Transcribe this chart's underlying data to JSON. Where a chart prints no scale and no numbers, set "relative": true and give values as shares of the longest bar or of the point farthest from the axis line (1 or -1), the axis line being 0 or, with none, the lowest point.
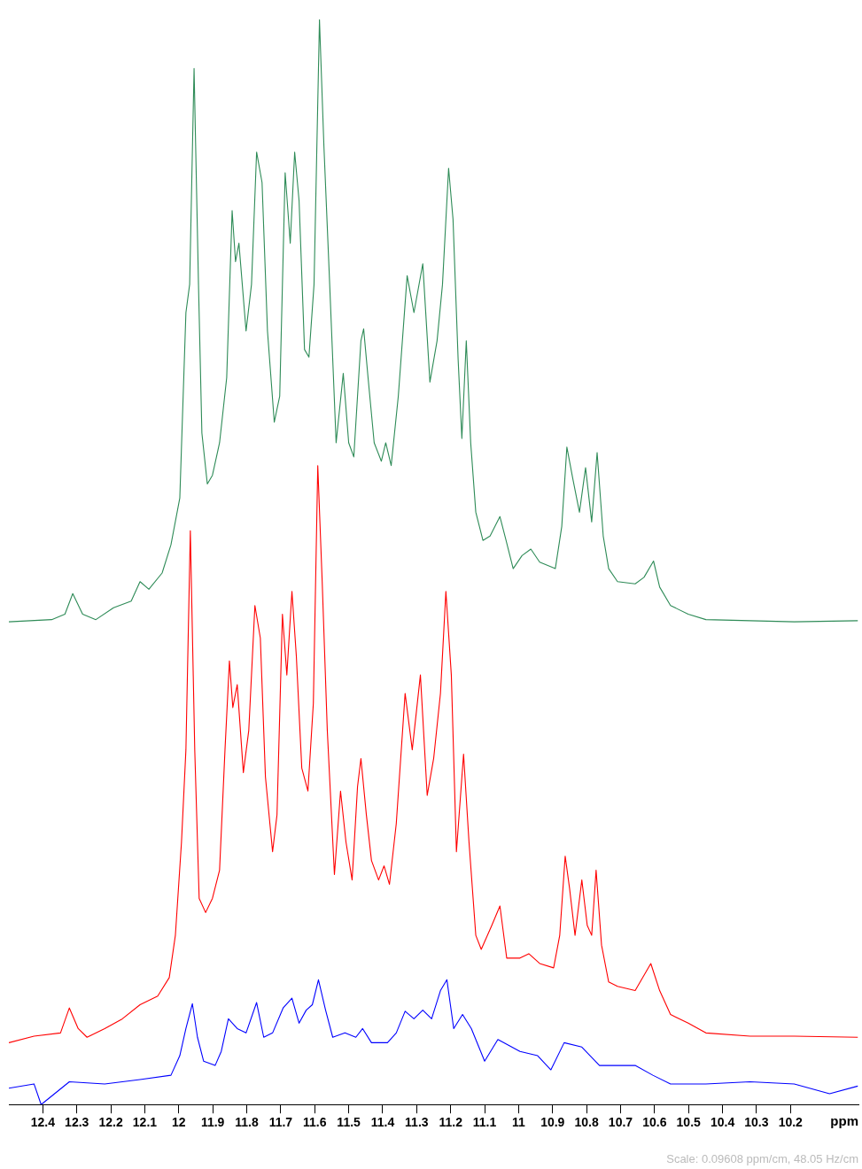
{
  "chart_data": {
    "type": "line",
    "relative": true,
    "xlabel": "ppm",
    "xlim": [
      12.5,
      10.0
    ],
    "xticks": [
      12.4,
      12.3,
      12.2,
      12.1,
      12.0,
      11.9,
      11.8,
      11.7,
      11.6,
      11.5,
      11.4,
      11.3,
      11.2,
      11.1,
      11.0,
      10.9,
      10.8,
      10.7,
      10.6,
      10.5,
      10.4,
      10.3,
      10.2
    ],
    "grid": false,
    "legend": false,
    "marker": "none",
    "line_style": "solid",
    "annotations": [
      "Scale: 0.09608 ppm/cm, 48.05 Hz/cm"
    ],
    "series": [
      {
        "color": "#2e8b57",
        "x": [
          12.5,
          12.374,
          12.335,
          12.312,
          12.283,
          12.244,
          12.192,
          12.14,
          12.114,
          12.088,
          12.049,
          12.023,
          11.997,
          11.979,
          11.968,
          11.955,
          11.942,
          11.932,
          11.916,
          11.901,
          11.88,
          11.859,
          11.843,
          11.833,
          11.823,
          11.802,
          11.786,
          11.771,
          11.755,
          11.739,
          11.719,
          11.703,
          11.687,
          11.672,
          11.659,
          11.646,
          11.63,
          11.617,
          11.602,
          11.586,
          11.573,
          11.557,
          11.537,
          11.516,
          11.5,
          11.485,
          11.464,
          11.456,
          11.443,
          11.425,
          11.404,
          11.391,
          11.375,
          11.354,
          11.328,
          11.308,
          11.282,
          11.261,
          11.24,
          11.224,
          11.206,
          11.193,
          11.178,
          11.167,
          11.154,
          11.141,
          11.126,
          11.105,
          11.084,
          11.055,
          11.037,
          11.016,
          10.99,
          10.964,
          10.938,
          10.892,
          10.873,
          10.858,
          10.84,
          10.821,
          10.803,
          10.785,
          10.769,
          10.751,
          10.735,
          10.709,
          10.657,
          10.631,
          10.603,
          10.585,
          10.553,
          10.501,
          10.449,
          10.319,
          10.189,
          10.002
        ],
        "values": [
          0.445,
          0.447,
          0.452,
          0.471,
          0.452,
          0.447,
          0.458,
          0.464,
          0.482,
          0.475,
          0.49,
          0.516,
          0.559,
          0.73,
          0.756,
          0.955,
          0.756,
          0.619,
          0.572,
          0.58,
          0.61,
          0.67,
          0.824,
          0.777,
          0.794,
          0.713,
          0.756,
          0.878,
          0.85,
          0.713,
          0.629,
          0.653,
          0.859,
          0.794,
          0.878,
          0.833,
          0.696,
          0.689,
          0.756,
          1,
          0.884,
          0.764,
          0.61,
          0.674,
          0.61,
          0.597,
          0.704,
          0.715,
          0.67,
          0.61,
          0.593,
          0.61,
          0.589,
          0.653,
          0.764,
          0.73,
          0.775,
          0.666,
          0.704,
          0.756,
          0.863,
          0.816,
          0.687,
          0.614,
          0.704,
          0.61,
          0.546,
          0.52,
          0.524,
          0.542,
          0.52,
          0.494,
          0.506,
          0.512,
          0.5,
          0.494,
          0.533,
          0.606,
          0.576,
          0.546,
          0.587,
          0.537,
          0.601,
          0.524,
          0.494,
          0.482,
          0.48,
          0.486,
          0.501,
          0.477,
          0.46,
          0.452,
          0.447,
          0.446,
          0.445,
          0.446
        ]
      },
      {
        "color": "#ff0000",
        "x": [
          12.5,
          12.426,
          12.348,
          12.322,
          12.296,
          12.27,
          12.218,
          12.166,
          12.114,
          12.062,
          12.028,
          12.01,
          11.992,
          11.979,
          11.966,
          11.953,
          11.94,
          11.921,
          11.901,
          11.88,
          11.864,
          11.851,
          11.841,
          11.828,
          11.81,
          11.794,
          11.776,
          11.76,
          11.745,
          11.724,
          11.711,
          11.695,
          11.682,
          11.667,
          11.654,
          11.638,
          11.62,
          11.604,
          11.591,
          11.578,
          11.563,
          11.542,
          11.524,
          11.508,
          11.49,
          11.474,
          11.464,
          11.448,
          11.433,
          11.412,
          11.396,
          11.38,
          11.36,
          11.334,
          11.313,
          11.289,
          11.269,
          11.25,
          11.23,
          11.214,
          11.198,
          11.183,
          11.162,
          11.146,
          11.126,
          11.11,
          11.079,
          11.055,
          11.035,
          10.996,
          10.97,
          10.938,
          10.897,
          10.879,
          10.863,
          10.85,
          10.834,
          10.814,
          10.798,
          10.785,
          10.772,
          10.756,
          10.735,
          10.709,
          10.657,
          10.611,
          10.585,
          10.553,
          10.501,
          10.449,
          10.319,
          10.189,
          10.002
        ],
        "values": [
          0.057,
          0.063,
          0.066,
          0.089,
          0.07,
          0.062,
          0.07,
          0.079,
          0.092,
          0.1,
          0.117,
          0.156,
          0.242,
          0.327,
          0.529,
          0.327,
          0.19,
          0.177,
          0.19,
          0.216,
          0.327,
          0.409,
          0.366,
          0.387,
          0.306,
          0.345,
          0.46,
          0.43,
          0.302,
          0.233,
          0.267,
          0.452,
          0.396,
          0.473,
          0.413,
          0.31,
          0.289,
          0.37,
          0.589,
          0.482,
          0.345,
          0.212,
          0.289,
          0.242,
          0.207,
          0.293,
          0.319,
          0.267,
          0.225,
          0.207,
          0.22,
          0.203,
          0.259,
          0.379,
          0.327,
          0.396,
          0.285,
          0.319,
          0.379,
          0.473,
          0.396,
          0.233,
          0.323,
          0.242,
          0.156,
          0.143,
          0.165,
          0.183,
          0.135,
          0.135,
          0.139,
          0.13,
          0.126,
          0.156,
          0.229,
          0.199,
          0.156,
          0.207,
          0.165,
          0.156,
          0.216,
          0.147,
          0.113,
          0.109,
          0.105,
          0.13,
          0.105,
          0.083,
          0.075,
          0.066,
          0.063,
          0.063,
          0.062
        ]
      },
      {
        "color": "#0000ff",
        "x": [
          12.5,
          12.426,
          12.405,
          12.322,
          12.218,
          12.114,
          12.023,
          11.997,
          11.979,
          11.96,
          11.945,
          11.927,
          11.893,
          11.875,
          11.854,
          11.828,
          11.802,
          11.771,
          11.75,
          11.724,
          11.693,
          11.667,
          11.646,
          11.625,
          11.607,
          11.589,
          11.568,
          11.547,
          11.511,
          11.479,
          11.459,
          11.433,
          11.386,
          11.36,
          11.334,
          11.308,
          11.282,
          11.256,
          11.23,
          11.211,
          11.191,
          11.165,
          11.139,
          11.1,
          11.061,
          10.996,
          10.944,
          10.905,
          10.866,
          10.814,
          10.762,
          10.709,
          10.657,
          10.605,
          10.553,
          10.449,
          10.319,
          10.189,
          10.085,
          10.002
        ],
        "values": [
          0.015,
          0.019,
          0,
          0.021,
          0.019,
          0.023,
          0.027,
          0.045,
          0.07,
          0.093,
          0.062,
          0.04,
          0.036,
          0.049,
          0.079,
          0.07,
          0.066,
          0.094,
          0.062,
          0.066,
          0.089,
          0.098,
          0.075,
          0.087,
          0.092,
          0.115,
          0.087,
          0.062,
          0.066,
          0.062,
          0.07,
          0.057,
          0.057,
          0.066,
          0.086,
          0.079,
          0.087,
          0.079,
          0.105,
          0.115,
          0.07,
          0.083,
          0.07,
          0.04,
          0.06,
          0.049,
          0.045,
          0.032,
          0.057,
          0.053,
          0.036,
          0.036,
          0.036,
          0.027,
          0.019,
          0.019,
          0.021,
          0.019,
          0.01,
          0.017
        ]
      }
    ]
  }
}
